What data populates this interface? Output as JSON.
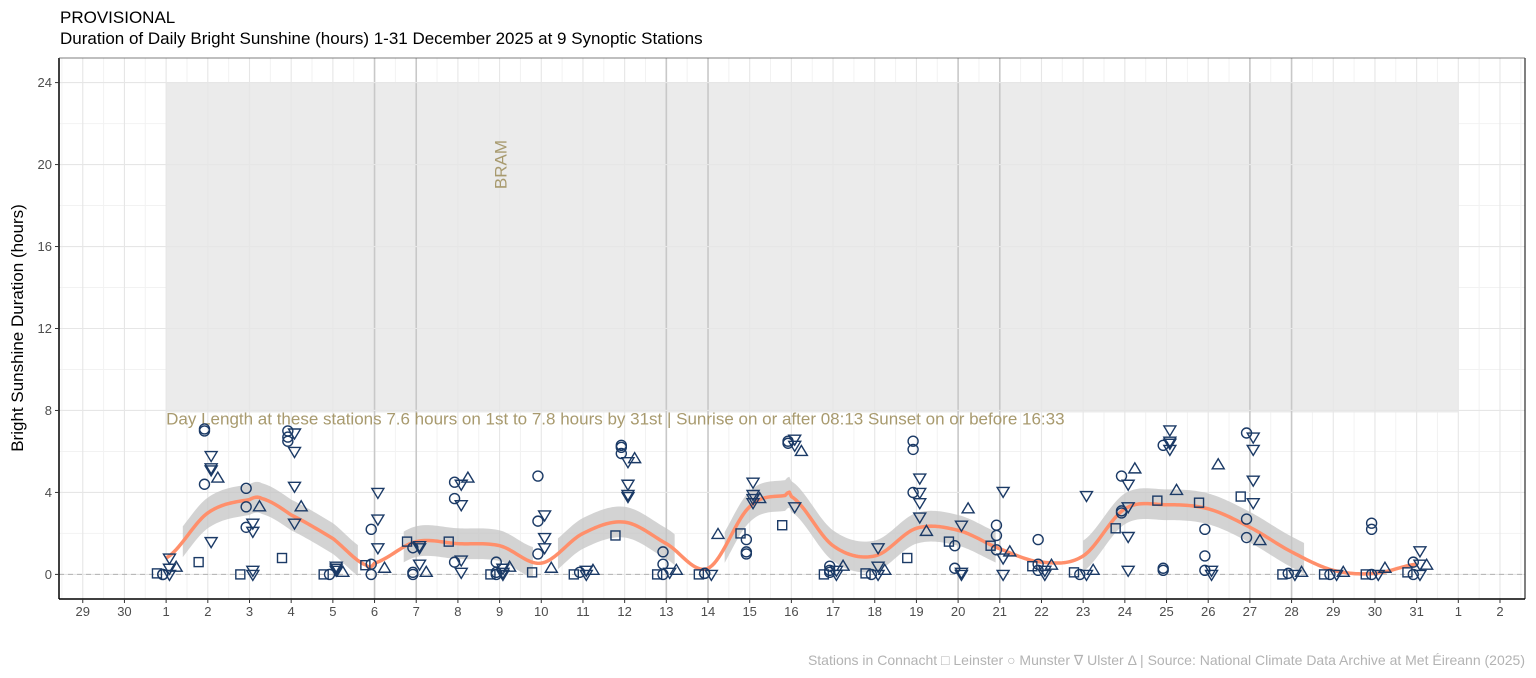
{
  "header": {
    "status": "PROVISIONAL",
    "title": "Duration of Daily Bright Sunshine (hours) 1-31 December 2025 at 9 Synoptic Stations"
  },
  "caption": "Stations in Connacht □  Leinster ○  Munster ∇  Ulster Δ | Source: National Climate Data Archive at Met Éireann (2025)",
  "chart_data": {
    "type": "scatter",
    "title": "Duration of Daily Bright Sunshine (hours) 1-31 December 2025 at 9 Synoptic Stations",
    "xlabel": "",
    "ylabel": "Bright Sunshine Duration (hours)",
    "ylim": [
      -1.2,
      25.2
    ],
    "yticks": [
      0,
      4,
      8,
      12,
      16,
      20,
      24
    ],
    "xticks": [
      {
        "day": -1,
        "label": "29"
      },
      {
        "day": 0,
        "label": "30"
      },
      {
        "day": 1,
        "label": "1"
      },
      {
        "day": 2,
        "label": "2"
      },
      {
        "day": 3,
        "label": "3"
      },
      {
        "day": 4,
        "label": "4"
      },
      {
        "day": 5,
        "label": "5"
      },
      {
        "day": 6,
        "label": "6"
      },
      {
        "day": 7,
        "label": "7"
      },
      {
        "day": 8,
        "label": "8"
      },
      {
        "day": 9,
        "label": "9"
      },
      {
        "day": 10,
        "label": "10"
      },
      {
        "day": 11,
        "label": "11"
      },
      {
        "day": 12,
        "label": "12"
      },
      {
        "day": 13,
        "label": "13"
      },
      {
        "day": 14,
        "label": "14"
      },
      {
        "day": 15,
        "label": "15"
      },
      {
        "day": 16,
        "label": "16"
      },
      {
        "day": 17,
        "label": "17"
      },
      {
        "day": 18,
        "label": "18"
      },
      {
        "day": 19,
        "label": "19"
      },
      {
        "day": 20,
        "label": "20"
      },
      {
        "day": 21,
        "label": "21"
      },
      {
        "day": 22,
        "label": "22"
      },
      {
        "day": 23,
        "label": "23"
      },
      {
        "day": 24,
        "label": "24"
      },
      {
        "day": 25,
        "label": "25"
      },
      {
        "day": 26,
        "label": "26"
      },
      {
        "day": 27,
        "label": "27"
      },
      {
        "day": 28,
        "label": "28"
      },
      {
        "day": 29,
        "label": "29"
      },
      {
        "day": 30,
        "label": "30"
      },
      {
        "day": 31,
        "label": "31"
      },
      {
        "day": 32,
        "label": "1"
      },
      {
        "day": 33,
        "label": "2"
      }
    ],
    "xlim_days": [
      -1.57,
      33.6
    ],
    "weekend_days": [
      6,
      7,
      13,
      14,
      20,
      21,
      27,
      28
    ],
    "grid": true,
    "day_length_band": {
      "from_day": 1,
      "to_day": 32,
      "lower_hours": 7.9,
      "upper_hours": 24
    },
    "annotations": [
      {
        "text": "BRAM",
        "day": 9,
        "hours": 20,
        "rotated": true
      },
      {
        "text": "Day Length at these stations 7.6 hours on 1st to 7.8 hours by 31st | Sunrise on or after 08:13 Sunset on or before 16:33",
        "day": 1,
        "hours": 7.9
      }
    ],
    "colors": {
      "points": "#1b3a66",
      "smooth": "#ff8f6b",
      "band": "#c4c4c4",
      "day_length_band": "#ebebeb",
      "annotation": "#a89a6e"
    },
    "series": [
      {
        "name": "Connacht",
        "marker": "square"
      },
      {
        "name": "Leinster",
        "marker": "circle"
      },
      {
        "name": "Munster",
        "marker": "triangle-down"
      },
      {
        "name": "Ulster",
        "marker": "triangle-up"
      }
    ],
    "observations": [
      {
        "day": 1,
        "Connacht": [
          0.05
        ],
        "Leinster": [
          0,
          0
        ],
        "Munster": [
          0.8,
          0.3,
          0
        ],
        "Ulster": [
          0.35
        ]
      },
      {
        "day": 2,
        "Connacht": [
          0.6
        ],
        "Leinster": [
          7.1,
          7.0,
          4.4
        ],
        "Munster": [
          5.8,
          5.2,
          5.1,
          1.6
        ],
        "Ulster": [
          4.7
        ]
      },
      {
        "day": 3,
        "Connacht": [
          0
        ],
        "Leinster": [
          4.2,
          3.3,
          2.3
        ],
        "Munster": [
          2.5,
          2.1,
          0.2,
          0
        ],
        "Ulster": [
          3.3
        ]
      },
      {
        "day": 4,
        "Connacht": [
          0.8
        ],
        "Leinster": [
          7.0,
          6.7,
          6.5
        ],
        "Munster": [
          6.9,
          6.0,
          4.3,
          2.5
        ],
        "Ulster": [
          3.3
        ]
      },
      {
        "day": 5,
        "Connacht": [
          0
        ],
        "Leinster": [
          0
        ],
        "Munster": [
          0.4,
          0.3,
          0.2
        ],
        "Ulster": [
          0.1
        ]
      },
      {
        "day": 6,
        "Connacht": [
          0.45
        ],
        "Leinster": [
          2.2,
          0.5,
          0
        ],
        "Munster": [
          4.0,
          2.7,
          1.3
        ],
        "Ulster": [
          0.3
        ]
      },
      {
        "day": 7,
        "Connacht": [
          1.6
        ],
        "Leinster": [
          1.3,
          0.1,
          0
        ],
        "Munster": [
          1.4,
          1.3,
          0.5
        ],
        "Ulster": [
          0.1
        ]
      },
      {
        "day": 8,
        "Connacht": [
          1.6
        ],
        "Leinster": [
          4.5,
          3.7,
          0.6
        ],
        "Munster": [
          4.4,
          3.4,
          0.7,
          0.1
        ],
        "Ulster": [
          4.7
        ]
      },
      {
        "day": 9,
        "Connacht": [
          0
        ],
        "Leinster": [
          0.6,
          0.1,
          0
        ],
        "Munster": [
          0.3,
          0.1,
          0
        ],
        "Ulster": [
          0.35
        ]
      },
      {
        "day": 10,
        "Connacht": [
          0.1
        ],
        "Leinster": [
          4.8,
          2.6,
          1.0
        ],
        "Munster": [
          2.9,
          1.8,
          1.3
        ],
        "Ulster": [
          0.3
        ]
      },
      {
        "day": 11,
        "Connacht": [
          0
        ],
        "Leinster": [
          0.1
        ],
        "Munster": [
          0.2,
          0
        ],
        "Ulster": [
          0.2
        ]
      },
      {
        "day": 12,
        "Connacht": [
          1.9
        ],
        "Leinster": [
          6.3,
          6.2,
          5.9
        ],
        "Munster": [
          5.5,
          4.4,
          3.9,
          3.8
        ],
        "Ulster": [
          5.65
        ]
      },
      {
        "day": 13,
        "Connacht": [
          0
        ],
        "Leinster": [
          1.1,
          0.5,
          0
        ],
        "Munster": [
          0.1
        ],
        "Ulster": [
          0.2
        ]
      },
      {
        "day": 14,
        "Connacht": [
          0
        ],
        "Leinster": [
          0.05,
          0.05
        ],
        "Munster": [
          0
        ],
        "Ulster": [
          1.95
        ]
      },
      {
        "day": 15,
        "Connacht": [
          2.0
        ],
        "Leinster": [
          1.7,
          1.1,
          1.0
        ],
        "Munster": [
          4.5,
          3.9,
          3.7,
          3.5
        ],
        "Ulster": [
          3.7
        ]
      },
      {
        "day": 16,
        "Connacht": [
          2.4
        ],
        "Leinster": [
          6.4,
          6.5
        ],
        "Munster": [
          6.6,
          6.3,
          3.3
        ],
        "Ulster": [
          6.0
        ]
      },
      {
        "day": 17,
        "Connacht": [
          0
        ],
        "Leinster": [
          0.4,
          0.2,
          0.1
        ],
        "Munster": [
          0.2,
          0
        ],
        "Ulster": [
          0.4
        ]
      },
      {
        "day": 18,
        "Connacht": [
          0.05
        ],
        "Leinster": [
          0
        ],
        "Munster": [
          1.3,
          0.4,
          0
        ],
        "Ulster": [
          0.2
        ]
      },
      {
        "day": 19,
        "Connacht": [
          0.8
        ],
        "Leinster": [
          6.5,
          6.1,
          4.0
        ],
        "Munster": [
          4.7,
          4.0,
          3.5,
          2.8
        ],
        "Ulster": [
          2.1
        ]
      },
      {
        "day": 20,
        "Connacht": [
          1.6
        ],
        "Leinster": [
          1.4,
          0.3
        ],
        "Munster": [
          2.4,
          0.1,
          0
        ],
        "Ulster": [
          3.2
        ]
      },
      {
        "day": 21,
        "Connacht": [
          1.4
        ],
        "Leinster": [
          2.4,
          1.9,
          1.2
        ],
        "Munster": [
          4.05,
          0.8,
          0
        ],
        "Ulster": [
          1.1
        ]
      },
      {
        "day": 22,
        "Connacht": [
          0.4
        ],
        "Leinster": [
          1.7,
          0.5,
          0.2
        ],
        "Munster": [
          0.2,
          0
        ],
        "Ulster": [
          0.45
        ]
      },
      {
        "day": 23,
        "Connacht": [
          0.1
        ],
        "Leinster": [
          0
        ],
        "Munster": [
          3.85,
          0
        ],
        "Ulster": [
          0.2
        ]
      },
      {
        "day": 24,
        "Connacht": [
          2.25
        ],
        "Leinster": [
          4.8,
          3.1,
          3.0
        ],
        "Munster": [
          4.4,
          3.3,
          1.85,
          0.2
        ],
        "Ulster": [
          5.15
        ]
      },
      {
        "day": 25,
        "Connacht": [
          3.6
        ],
        "Leinster": [
          6.3,
          0.3,
          0.2
        ],
        "Munster": [
          7.05,
          6.5,
          6.4,
          6.1
        ],
        "Ulster": [
          4.1
        ]
      },
      {
        "day": 26,
        "Connacht": [
          3.5
        ],
        "Leinster": [
          2.2,
          0.9,
          0.2
        ],
        "Munster": [
          0.2,
          0
        ],
        "Ulster": [
          5.35
        ]
      },
      {
        "day": 27,
        "Connacht": [
          3.8
        ],
        "Leinster": [
          6.9,
          2.7,
          1.8
        ],
        "Munster": [
          6.7,
          6.1,
          4.6,
          3.5
        ],
        "Ulster": [
          1.65
        ]
      },
      {
        "day": 28,
        "Connacht": [
          0
        ],
        "Leinster": [
          0.05
        ],
        "Munster": [
          0
        ],
        "Ulster": [
          0.1
        ]
      },
      {
        "day": 29,
        "Connacht": [
          0
        ],
        "Leinster": [
          0
        ],
        "Munster": [
          0
        ],
        "Ulster": [
          0.1
        ]
      },
      {
        "day": 30,
        "Connacht": [
          0
        ],
        "Leinster": [
          2.5,
          2.2,
          0
        ],
        "Munster": [
          0
        ],
        "Ulster": [
          0.3
        ]
      },
      {
        "day": 31,
        "Connacht": [
          0.1
        ],
        "Leinster": [
          0.6,
          0
        ],
        "Munster": [
          1.15,
          0.5,
          0
        ],
        "Ulster": [
          0.45
        ]
      }
    ],
    "smooth": {
      "days": [
        1,
        2,
        3,
        3.3,
        4,
        5,
        5.8,
        6,
        7,
        8,
        9,
        10,
        11,
        12,
        13,
        14,
        15,
        15.85,
        16,
        17,
        18,
        19,
        20,
        21,
        22,
        23,
        24,
        25,
        26,
        27,
        28,
        29,
        30,
        31
      ],
      "hours": [
        0.8,
        3.0,
        3.65,
        3.7,
        2.9,
        1.75,
        0.45,
        0.55,
        1.6,
        1.5,
        1.4,
        0.55,
        2.0,
        2.55,
        1.5,
        0.3,
        3.3,
        3.85,
        3.8,
        1.4,
        0.9,
        2.25,
        2.15,
        1.25,
        0.6,
        0.9,
        3.2,
        3.4,
        3.2,
        2.3,
        1.1,
        0.2,
        0.05,
        0.5
      ],
      "band_halfwidth_hours": 0.75,
      "band_segments_days": [
        [
          1.4,
          5.6
        ],
        [
          6.7,
          9.8
        ],
        [
          10.4,
          13.2
        ],
        [
          14.4,
          20.9
        ],
        [
          23.0,
          28.3
        ]
      ]
    }
  }
}
